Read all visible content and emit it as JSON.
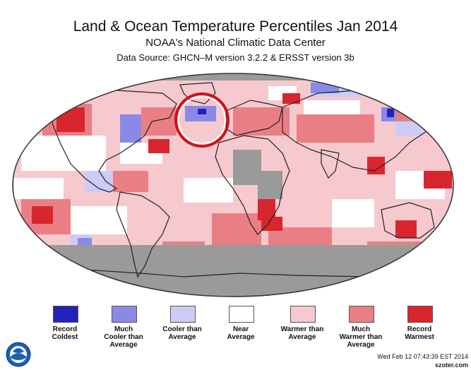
{
  "header": {
    "title": "Land & Ocean Temperature Percentiles Jan 2014",
    "subtitle": "NOAA's National Climatic Data Center",
    "source": "Data Source: GHCN–M version 3.2.2 & ERSST version 3b"
  },
  "colors": {
    "record_coldest": "#2222bb",
    "much_cooler": "#8a8ae6",
    "cooler": "#ccccf6",
    "near_average": "#ffffff",
    "warmer": "#f5c9cd",
    "much_warmer": "#e97f85",
    "record_warmest": "#d8262e",
    "no_data": "#9a9a9a",
    "highlight_ring": "#c8141c"
  },
  "legend": [
    {
      "key": "record_coldest",
      "label": "Record\nColdest"
    },
    {
      "key": "much_cooler",
      "label": "Much\nCooler than\nAverage"
    },
    {
      "key": "cooler",
      "label": "Cooler than\nAverage"
    },
    {
      "key": "near_average",
      "label": "Near\nAverage"
    },
    {
      "key": "warmer",
      "label": "Warmer than\nAverage"
    },
    {
      "key": "much_warmer",
      "label": "Much\nWarmer than\nAverage"
    },
    {
      "key": "record_warmest",
      "label": "Record\nWarmest"
    }
  ],
  "footer": {
    "logo_icon": "noaa-logo",
    "timestamp": "Wed Feb 12 07:43:39 EST 2014",
    "watermark": "szoter.com"
  }
}
